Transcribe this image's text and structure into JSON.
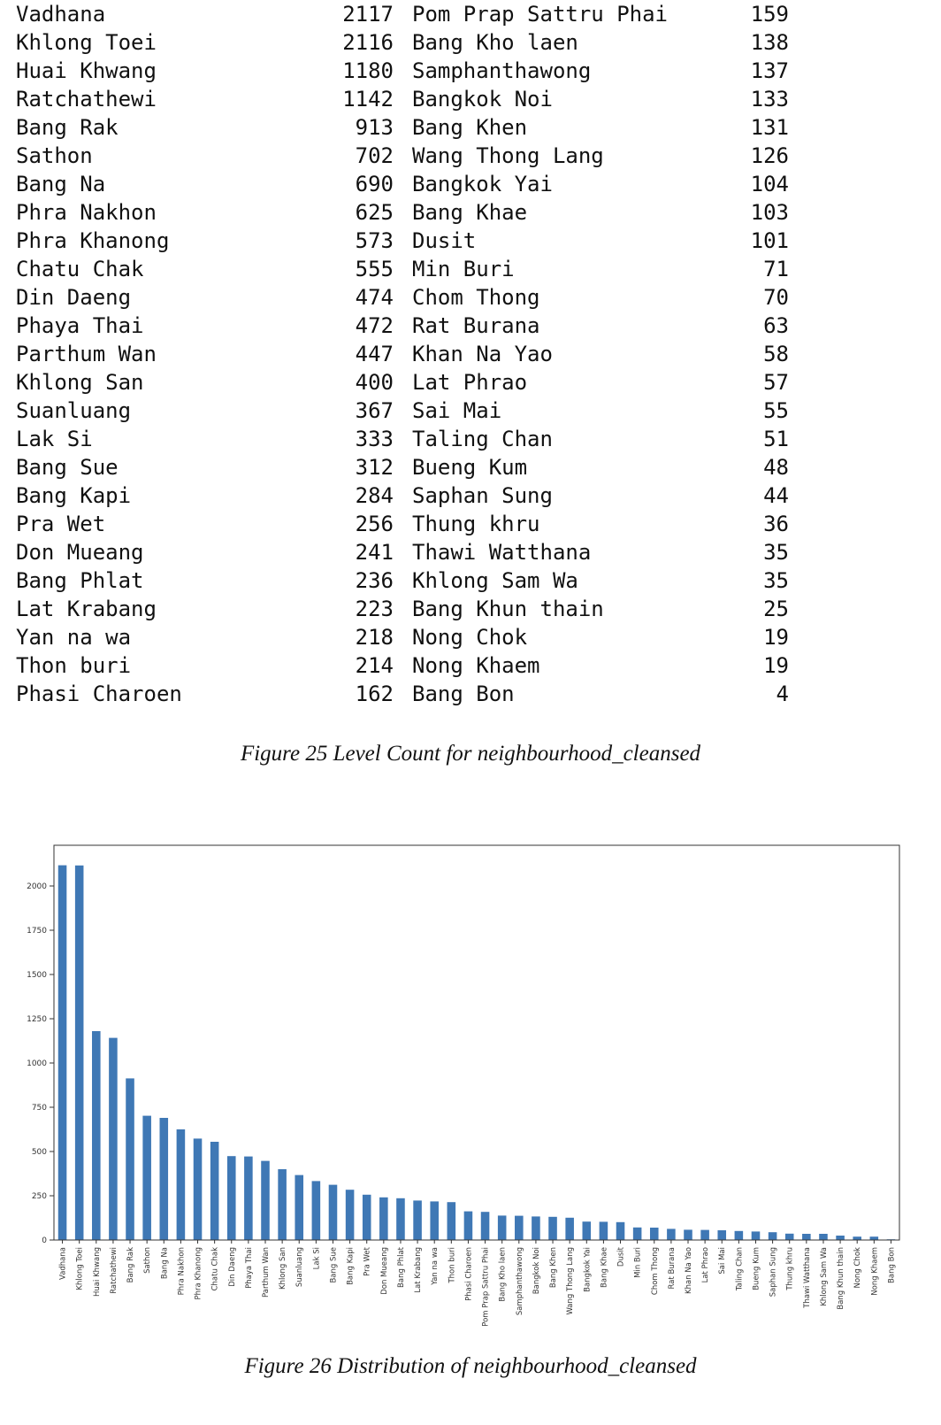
{
  "figure25": {
    "caption": "Figure 25 Level Count for neighbourhood_cleansed",
    "left_column": [
      {
        "name": "Vadhana",
        "count": "2117"
      },
      {
        "name": "Khlong Toei",
        "count": "2116"
      },
      {
        "name": "Huai Khwang",
        "count": "1180"
      },
      {
        "name": "Ratchathewi",
        "count": "1142"
      },
      {
        "name": "Bang Rak",
        "count": "913"
      },
      {
        "name": "Sathon",
        "count": "702"
      },
      {
        "name": "Bang Na",
        "count": "690"
      },
      {
        "name": "Phra Nakhon",
        "count": "625"
      },
      {
        "name": "Phra Khanong",
        "count": "573"
      },
      {
        "name": "Chatu Chak",
        "count": "555"
      },
      {
        "name": "Din Daeng",
        "count": "474"
      },
      {
        "name": "Phaya Thai",
        "count": "472"
      },
      {
        "name": "Parthum Wan",
        "count": "447"
      },
      {
        "name": "Khlong San",
        "count": "400"
      },
      {
        "name": "Suanluang",
        "count": "367"
      },
      {
        "name": "Lak Si",
        "count": "333"
      },
      {
        "name": "Bang Sue",
        "count": "312"
      },
      {
        "name": "Bang Kapi",
        "count": "284"
      },
      {
        "name": "Pra Wet",
        "count": "256"
      },
      {
        "name": "Don Mueang",
        "count": "241"
      },
      {
        "name": "Bang Phlat",
        "count": "236"
      },
      {
        "name": "Lat Krabang",
        "count": "223"
      },
      {
        "name": "Yan na wa",
        "count": "218"
      },
      {
        "name": "Thon buri",
        "count": "214"
      },
      {
        "name": "Phasi Charoen",
        "count": "162"
      }
    ],
    "right_column": [
      {
        "name": "Pom Prap Sattru Phai",
        "count": "159"
      },
      {
        "name": "Bang Kho laen",
        "count": "138"
      },
      {
        "name": "Samphanthawong",
        "count": "137"
      },
      {
        "name": "Bangkok Noi",
        "count": "133"
      },
      {
        "name": "Bang Khen",
        "count": "131"
      },
      {
        "name": "Wang Thong Lang",
        "count": "126"
      },
      {
        "name": "Bangkok Yai",
        "count": "104"
      },
      {
        "name": "Bang Khae",
        "count": "103"
      },
      {
        "name": "Dusit",
        "count": "101"
      },
      {
        "name": "Min Buri",
        "count": "71"
      },
      {
        "name": "Chom Thong",
        "count": "70"
      },
      {
        "name": "Rat Burana",
        "count": "63"
      },
      {
        "name": "Khan Na Yao",
        "count": "58"
      },
      {
        "name": "Lat Phrao",
        "count": "57"
      },
      {
        "name": "Sai Mai",
        "count": "55"
      },
      {
        "name": "Taling Chan",
        "count": "51"
      },
      {
        "name": "Bueng Kum",
        "count": "48"
      },
      {
        "name": "Saphan Sung",
        "count": "44"
      },
      {
        "name": "Thung khru",
        "count": "36"
      },
      {
        "name": "Thawi Watthana",
        "count": "35"
      },
      {
        "name": "Khlong Sam Wa",
        "count": "35"
      },
      {
        "name": "Bang Khun thain",
        "count": "25"
      },
      {
        "name": "Nong Chok",
        "count": "19"
      },
      {
        "name": "Nong Khaem",
        "count": "19"
      },
      {
        "name": "Bang Bon",
        "count": "4"
      }
    ]
  },
  "figure26": {
    "caption": "Figure 26 Distribution of neighbourhood_cleansed"
  },
  "colors": {
    "bar": "#3f78b5",
    "text": "#111111"
  },
  "chart_data": {
    "type": "bar",
    "title": "",
    "xlabel": "",
    "ylabel": "",
    "ylim": [
      0,
      2230
    ],
    "yticks": [
      0,
      250,
      500,
      750,
      1000,
      1250,
      1500,
      1750,
      2000
    ],
    "grid": false,
    "categories": [
      "Vadhana",
      "Khlong Toei",
      "Huai Khwang",
      "Ratchathewi",
      "Bang Rak",
      "Sathon",
      "Bang Na",
      "Phra Nakhon",
      "Phra Khanong",
      "Chatu Chak",
      "Din Daeng",
      "Phaya Thai",
      "Parthum Wan",
      "Khlong San",
      "Suanluang",
      "Lak Si",
      "Bang Sue",
      "Bang Kapi",
      "Pra Wet",
      "Don Mueang",
      "Bang Phlat",
      "Lat Krabang",
      "Yan na wa",
      "Thon buri",
      "Phasi Charoen",
      "Pom Prap Sattru Phai",
      "Bang Kho laen",
      "Samphanthawong",
      "Bangkok Noi",
      "Bang Khen",
      "Wang Thong Lang",
      "Bangkok Yai",
      "Bang Khae",
      "Dusit",
      "Min Buri",
      "Chom Thong",
      "Rat Burana",
      "Khan Na Yao",
      "Lat Phrao",
      "Sai Mai",
      "Taling Chan",
      "Bueng Kum",
      "Saphan Sung",
      "Thung khru",
      "Thawi Watthana",
      "Khlong Sam Wa",
      "Bang Khun thain",
      "Nong Chok",
      "Nong Khaem",
      "Bang Bon"
    ],
    "values": [
      2117,
      2116,
      1180,
      1142,
      913,
      702,
      690,
      625,
      573,
      555,
      474,
      472,
      447,
      400,
      367,
      333,
      312,
      284,
      256,
      241,
      236,
      223,
      218,
      214,
      162,
      159,
      138,
      137,
      133,
      131,
      126,
      104,
      103,
      101,
      71,
      70,
      63,
      58,
      57,
      55,
      51,
      48,
      44,
      36,
      35,
      35,
      25,
      19,
      19,
      4
    ]
  }
}
